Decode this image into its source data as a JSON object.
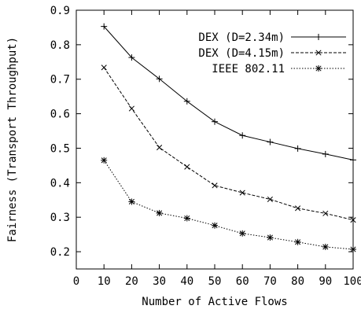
{
  "chart_data": {
    "type": "line",
    "title": "",
    "xlabel": "Number of Active Flows",
    "ylabel": "Fairness (Transport Throughput)",
    "xlim": [
      0,
      100
    ],
    "ylim": [
      0.15,
      0.9
    ],
    "xticks": [
      0,
      10,
      20,
      30,
      40,
      50,
      60,
      70,
      80,
      90,
      100
    ],
    "yticks": [
      0.2,
      0.3,
      0.4,
      0.5,
      0.6,
      0.7,
      0.8,
      0.9
    ],
    "grid": false,
    "legend_position": "top-right",
    "x": [
      10,
      20,
      30,
      40,
      50,
      60,
      70,
      80,
      90,
      100
    ],
    "series": [
      {
        "name": "DEX (D=2.34m)",
        "marker": "plus",
        "dash": "solid",
        "values": [
          0.853,
          0.763,
          0.701,
          0.636,
          0.577,
          0.537,
          0.518,
          0.499,
          0.483,
          0.466
        ]
      },
      {
        "name": "DEX (D=4.15m)",
        "marker": "cross",
        "dash": "dashed",
        "values": [
          0.734,
          0.615,
          0.502,
          0.446,
          0.392,
          0.371,
          0.352,
          0.326,
          0.311,
          0.292
        ]
      },
      {
        "name": "IEEE 802.11",
        "marker": "star",
        "dash": "dotted",
        "values": [
          0.465,
          0.345,
          0.312,
          0.297,
          0.276,
          0.253,
          0.241,
          0.228,
          0.214,
          0.207
        ]
      }
    ]
  }
}
